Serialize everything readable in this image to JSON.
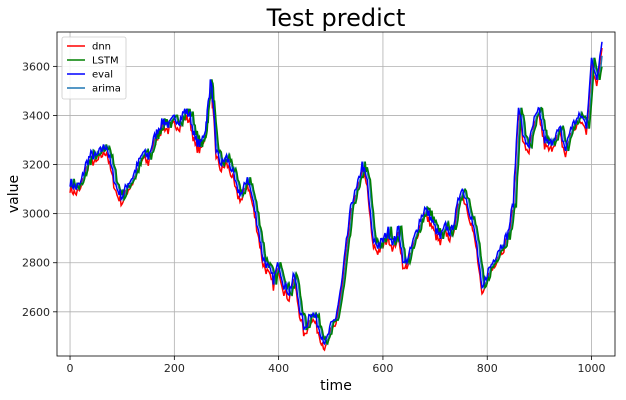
{
  "chart_data": {
    "type": "line",
    "title": "Test predict",
    "xlabel": "time",
    "ylabel": "value",
    "xlim": [
      -25,
      1045
    ],
    "ylim": [
      2420,
      3740
    ],
    "xticks": [
      0,
      200,
      400,
      600,
      800,
      1000
    ],
    "yticks": [
      2600,
      2800,
      3000,
      3200,
      3400,
      3600
    ],
    "grid": true,
    "legend_position": "top-left",
    "colors": {
      "dnn": "#ff0000",
      "LSTM": "#008000",
      "eval": "#0000ff",
      "arima": "#1f77b4"
    },
    "series": [
      {
        "name": "dnn",
        "offset": -25,
        "lag": 0
      },
      {
        "name": "LSTM",
        "offset": 0,
        "lag": 3
      },
      {
        "name": "eval",
        "offset": 0,
        "lag": 0
      },
      {
        "name": "arima",
        "offset": 0,
        "lag": 2
      }
    ],
    "x": [
      0,
      10,
      20,
      30,
      40,
      50,
      60,
      70,
      80,
      90,
      100,
      110,
      120,
      130,
      140,
      150,
      160,
      170,
      180,
      190,
      200,
      210,
      220,
      230,
      240,
      250,
      260,
      265,
      270,
      275,
      280,
      290,
      300,
      310,
      320,
      330,
      340,
      350,
      360,
      370,
      380,
      390,
      400,
      410,
      420,
      430,
      440,
      450,
      460,
      470,
      480,
      490,
      500,
      510,
      520,
      530,
      540,
      550,
      560,
      570,
      580,
      590,
      600,
      610,
      620,
      630,
      640,
      650,
      660,
      670,
      680,
      690,
      700,
      710,
      720,
      730,
      740,
      750,
      760,
      770,
      780,
      790,
      800,
      810,
      820,
      830,
      840,
      850,
      860,
      870,
      880,
      890,
      900,
      910,
      920,
      930,
      940,
      950,
      960,
      970,
      980,
      990,
      1000,
      1010,
      1020
    ],
    "eval_values": [
      3130,
      3105,
      3120,
      3200,
      3240,
      3230,
      3260,
      3280,
      3180,
      3100,
      3070,
      3120,
      3150,
      3200,
      3250,
      3230,
      3300,
      3350,
      3380,
      3360,
      3390,
      3380,
      3420,
      3400,
      3300,
      3280,
      3350,
      3450,
      3550,
      3420,
      3260,
      3200,
      3230,
      3180,
      3100,
      3080,
      3150,
      3060,
      2950,
      2820,
      2780,
      2730,
      2800,
      2710,
      2680,
      2750,
      2620,
      2520,
      2600,
      2580,
      2520,
      2470,
      2540,
      2580,
      2700,
      2880,
      3050,
      3100,
      3200,
      3130,
      2900,
      2870,
      2890,
      2930,
      2880,
      2940,
      2790,
      2830,
      2900,
      2970,
      3020,
      2990,
      2940,
      2900,
      2950,
      2920,
      3000,
      3110,
      3060,
      2980,
      2870,
      2680,
      2760,
      2800,
      2850,
      2880,
      2920,
      3050,
      3450,
      3300,
      3280,
      3380,
      3420,
      3300,
      3280,
      3320,
      3340,
      3260,
      3350,
      3380,
      3400,
      3360,
      3620,
      3560,
      3700
    ]
  }
}
